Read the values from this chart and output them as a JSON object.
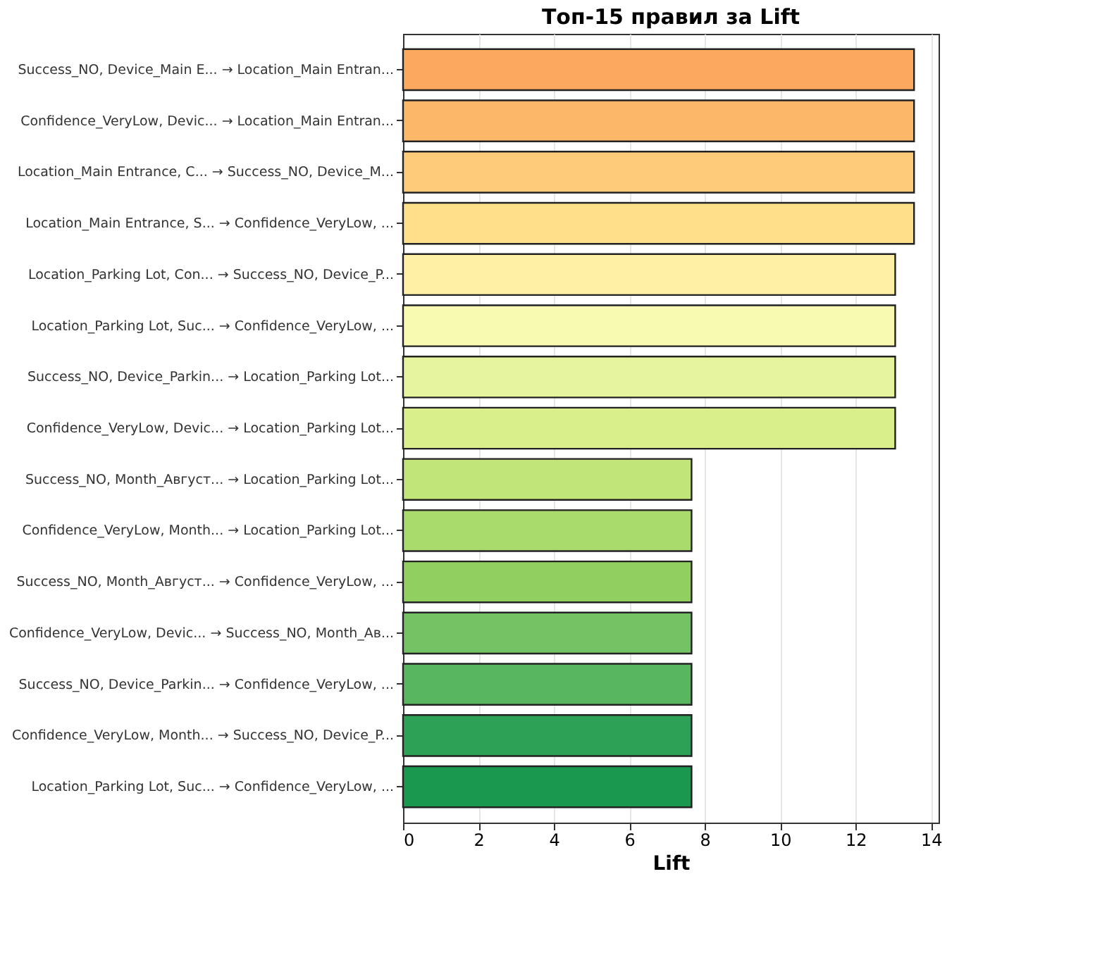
{
  "chart_data": {
    "type": "bar",
    "orientation": "horizontal",
    "title": "Топ-15 правил за Lift",
    "xlabel": "Lift",
    "categories": [
      "Success_NO, Device_Main E... → Location_Main Entran...",
      "Confidence_VeryLow, Devic... → Location_Main Entran...",
      "Location_Main Entrance, C... → Success_NO, Device_M...",
      "Location_Main Entrance, S... → Confidence_VeryLow, ...",
      "Location_Parking Lot, Con... → Success_NO, Device_P...",
      "Location_Parking Lot, Suc... → Confidence_VeryLow, ...",
      "Success_NO, Device_Parkin... → Location_Parking Lot...",
      "Confidence_VeryLow, Devic... → Location_Parking Lot...",
      "Success_NO, Month_Август... → Location_Parking Lot...",
      "Confidence_VeryLow, Month... → Location_Parking Lot...",
      "Success_NO, Month_Август... → Confidence_VeryLow, ...",
      "Confidence_VeryLow, Devic... → Success_NO, Month_Ав...",
      "Success_NO, Device_Parkin... → Confidence_VeryLow, ...",
      "Confidence_VeryLow, Month... → Success_NO, Device_P...",
      "Location_Parking Lot, Suc... → Confidence_VeryLow, ..."
    ],
    "values": [
      13.55,
      13.55,
      13.55,
      13.55,
      13.05,
      13.05,
      13.05,
      13.05,
      7.65,
      7.65,
      7.65,
      7.65,
      7.65,
      7.65,
      7.65
    ],
    "colors": [
      "#fca85e",
      "#fdb768",
      "#fdcb7a",
      "#fee08b",
      "#fff0a6",
      "#f7fab0",
      "#e6f59d",
      "#d9ef8b",
      "#c2e57a",
      "#a9da6c",
      "#91cf60",
      "#73c264",
      "#57b65f",
      "#2da155",
      "#1a9850"
    ],
    "xlim": [
      0,
      14.2
    ],
    "xticks": [
      0,
      2,
      4,
      6,
      8,
      10,
      12,
      14
    ],
    "grid": "x"
  }
}
